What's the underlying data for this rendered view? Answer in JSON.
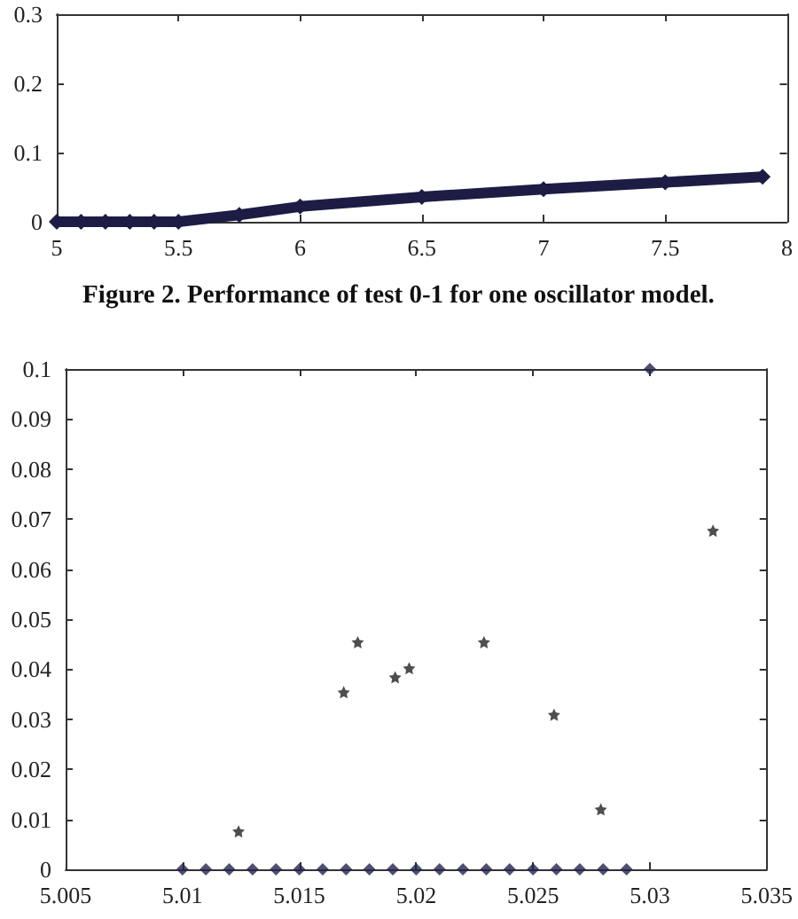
{
  "chart_data": [
    {
      "type": "line",
      "annotations": [
        "Figure 2. Performance of test 0-1 for one oscillator model."
      ],
      "x": [
        5,
        5.1,
        5.2,
        5.3,
        5.4,
        5.5,
        5.75,
        6,
        6.5,
        7,
        7.5,
        7.9
      ],
      "xlim": [
        5,
        8
      ],
      "xticks": [
        5,
        5.5,
        6,
        6.5,
        7,
        7.5,
        8
      ],
      "ylim": [
        0,
        0.3
      ],
      "yticks": [
        0,
        0.1,
        0.2,
        0.3
      ],
      "grid": false,
      "line_style": "solid",
      "marker": "diamond",
      "series": [
        {
          "color": "#1c1c44",
          "values": [
            0,
            0,
            0,
            0,
            0,
            0,
            0.01,
            0.022,
            0.036,
            0.047,
            0.057,
            0.065
          ]
        }
      ]
    },
    {
      "type": "scatter",
      "xlim": [
        5.005,
        5.035
      ],
      "xticks": [
        5.005,
        5.01,
        5.015,
        5.02,
        5.025,
        5.03,
        5.035
      ],
      "ylim": [
        0,
        0.1
      ],
      "yticks": [
        0,
        0.01,
        0.02,
        0.03,
        0.04,
        0.05,
        0.06,
        0.07,
        0.08,
        0.09,
        0.1
      ],
      "grid": false,
      "series": [
        {
          "color": "#23234d",
          "marker": "diamond",
          "x": [
            5.01,
            5.011,
            5.012,
            5.013,
            5.014,
            5.015,
            5.016,
            5.017,
            5.018,
            5.019,
            5.02,
            5.021,
            5.022,
            5.023,
            5.024,
            5.025,
            5.026,
            5.027,
            5.028,
            5.029,
            5.03
          ],
          "values": [
            0,
            0,
            0,
            0,
            0,
            0,
            0,
            0,
            0,
            0,
            0,
            0,
            0,
            0,
            0,
            0,
            0,
            0,
            0,
            0,
            0.1
          ]
        },
        {
          "color": "#222222",
          "marker": "star",
          "x": [
            5.0124,
            5.0169,
            5.0175,
            5.0191,
            5.0197,
            5.0229,
            5.0259,
            5.0279,
            5.0327
          ],
          "values": [
            0.0076,
            0.0354,
            0.0454,
            0.0384,
            0.0402,
            0.0454,
            0.0309,
            0.012,
            0.0677
          ]
        }
      ]
    }
  ]
}
